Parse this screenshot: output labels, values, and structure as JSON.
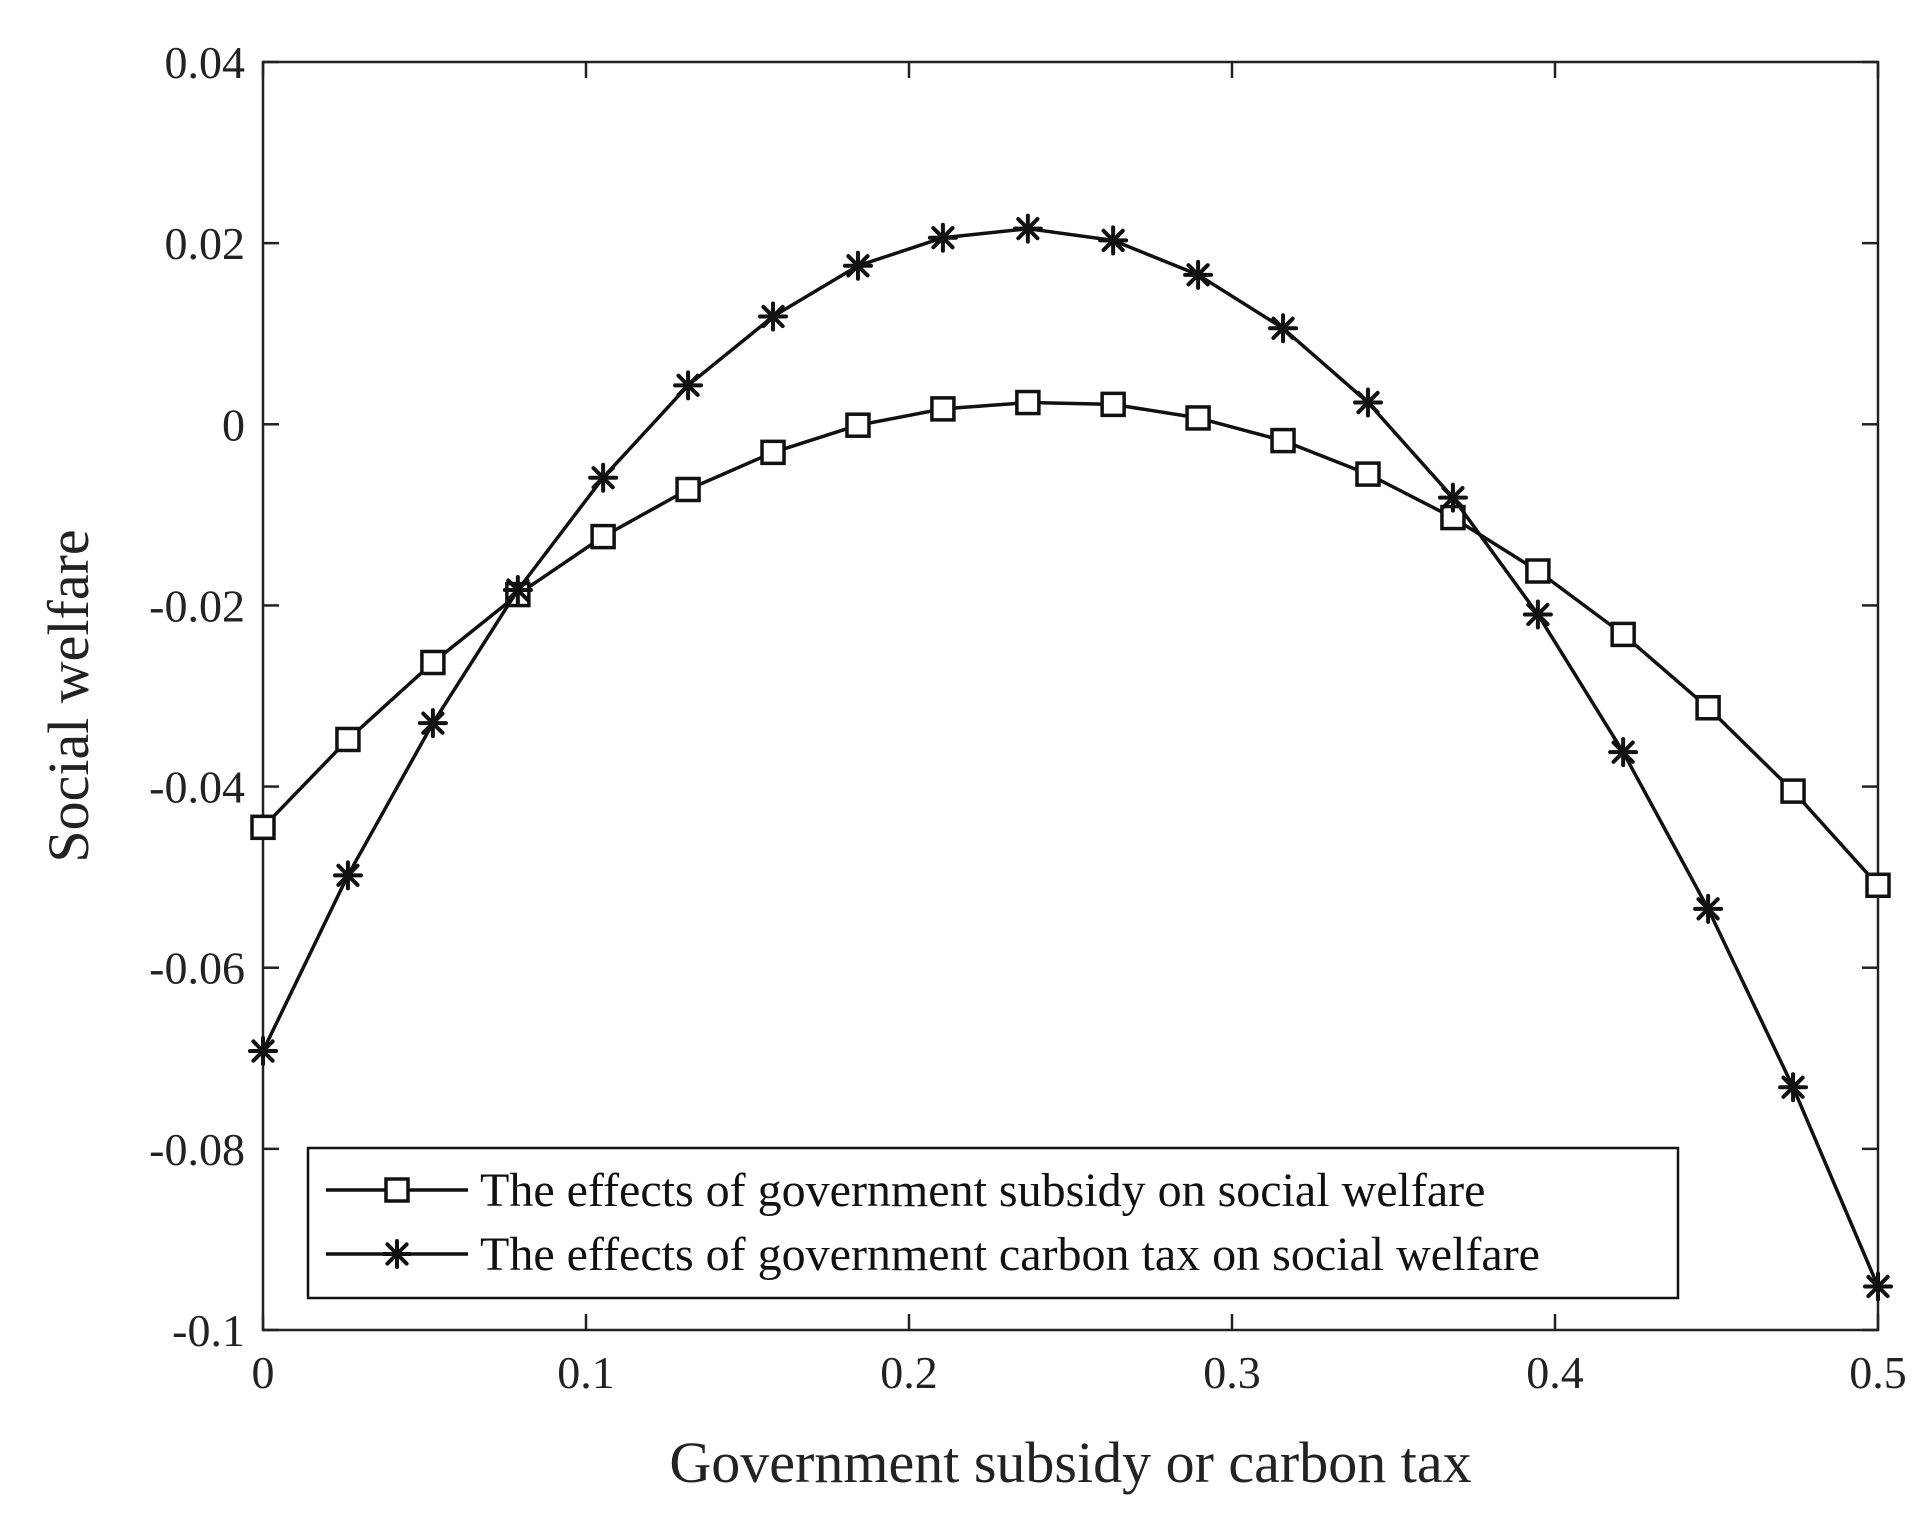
{
  "chart_data": {
    "type": "line",
    "title": "",
    "xlabel": "Government subsidy or carbon tax",
    "ylabel": "Social welfare",
    "xlim": [
      0,
      0.5
    ],
    "ylim": [
      -0.1,
      0.04
    ],
    "xticks": [
      0,
      0.1,
      0.2,
      0.3,
      0.4,
      0.5
    ],
    "xtick_labels": [
      "0",
      "0.1",
      "0.2",
      "0.3",
      "0.4",
      "0.5"
    ],
    "yticks": [
      0.04,
      0.02,
      0,
      -0.02,
      -0.04,
      -0.06,
      -0.08,
      -0.1
    ],
    "ytick_labels": [
      "0.04",
      "0.02",
      "0",
      "-0.02",
      "-0.04",
      "-0.06",
      "-0.08",
      "-0.1"
    ],
    "grid": false,
    "legend_position": "bottom-left",
    "x": [
      0,
      0.0263,
      0.0526,
      0.0789,
      0.1053,
      0.1316,
      0.1579,
      0.1842,
      0.2105,
      0.2368,
      0.2632,
      0.2895,
      0.3158,
      0.3421,
      0.3684,
      0.3947,
      0.4211,
      0.4474,
      0.4737,
      0.5
    ],
    "series": [
      {
        "name": "The effects of government subsidy on social welfare",
        "marker": "square",
        "color": "#111111",
        "values": [
          -0.0445,
          -0.0348,
          -0.0263,
          -0.0188,
          -0.0124,
          -0.0072,
          -0.0031,
          -0.0001,
          0.0017,
          0.0024,
          0.0022,
          0.0007,
          -0.0018,
          -0.0055,
          -0.0103,
          -0.0162,
          -0.0232,
          -0.0313,
          -0.0405,
          -0.0509
        ]
      },
      {
        "name": "The effects of government carbon tax on social welfare",
        "marker": "star",
        "color": "#111111",
        "values": [
          -0.0692,
          -0.0498,
          -0.033,
          -0.0183,
          -0.0059,
          0.0043,
          0.0119,
          0.0175,
          0.0206,
          0.0216,
          0.0203,
          0.0165,
          0.0106,
          0.0024,
          -0.0081,
          -0.021,
          -0.0362,
          -0.0535,
          -0.0732,
          -0.0952
        ]
      }
    ]
  }
}
